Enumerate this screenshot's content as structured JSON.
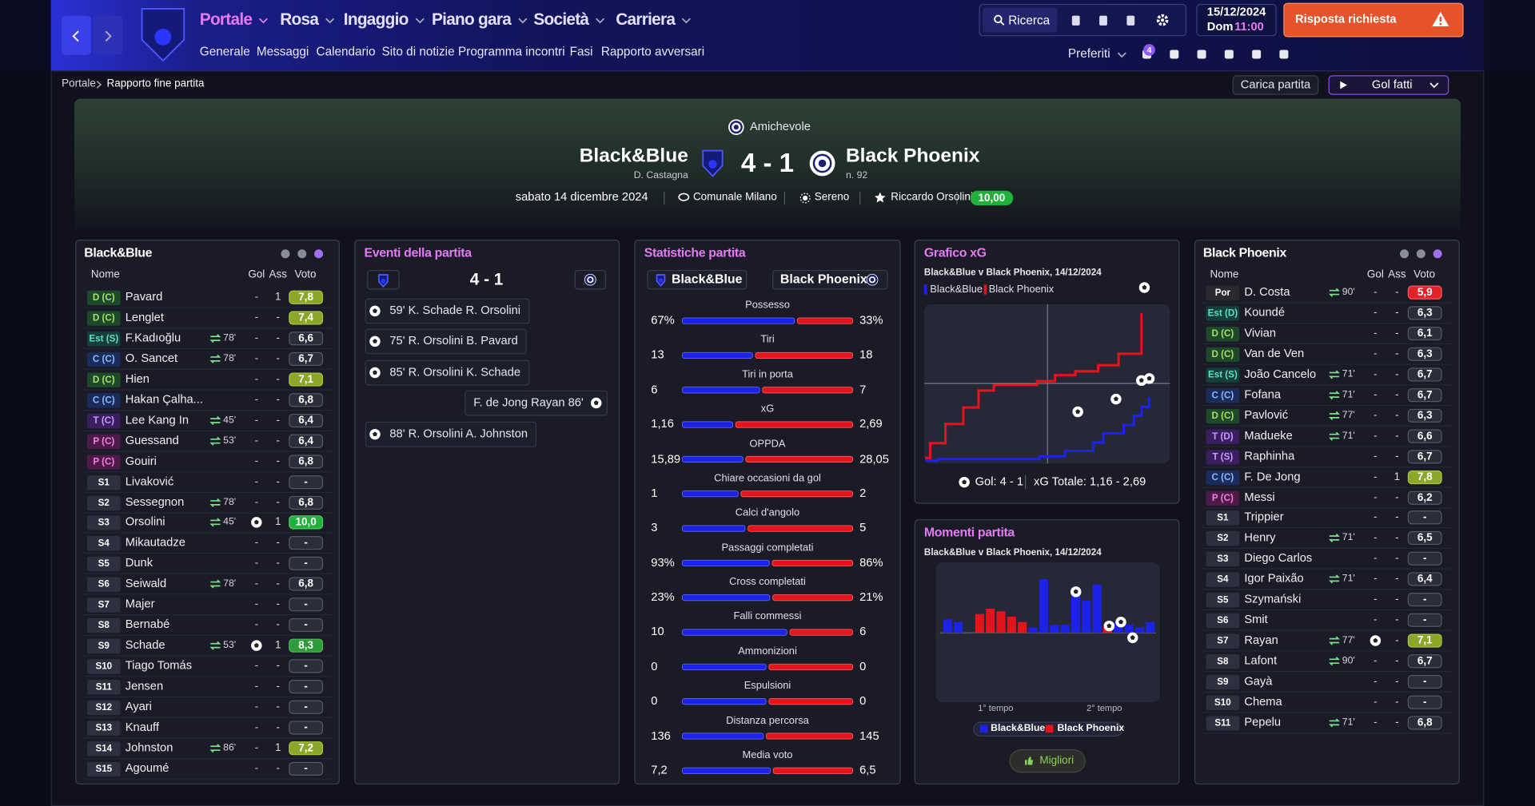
{
  "nav": {
    "menu": [
      "Portale",
      "Rosa",
      "Ingaggio",
      "Piano gara",
      "Società",
      "Carriera"
    ],
    "submenu": [
      "Generale",
      "Messaggi",
      "Calendario",
      "Sito di notizie",
      "Programma incontri",
      "Fasi",
      "Rapporto avversari"
    ],
    "search": "Ricerca",
    "date": "15/12/2024",
    "day": "Dom",
    "time": "11:00",
    "alert": "Risposta richiesta",
    "favorites": "Preferiti",
    "notifications": "4"
  },
  "breadcrumb": [
    "Portale",
    "Rapporto fine partita"
  ],
  "actions": {
    "load": "Carica partita",
    "goals": "Gol fatti"
  },
  "match": {
    "competition": "Amichevole",
    "home": "Black&Blue",
    "home_manager": "D. Castagna",
    "score": "4 - 1",
    "away": "Black Phoenix",
    "away_info": "n. 92",
    "date": "sabato 14 dicembre 2024",
    "stadium": "Comunale Milano",
    "weather": "Sereno",
    "player_of_match": "Riccardo Orsolini",
    "player_of_match_rating": "10,00"
  },
  "home_team": {
    "title": "Black&Blue",
    "columns": [
      "Nome",
      "Gol",
      "Ass",
      "Voto"
    ],
    "players": [
      [
        "D (C)",
        "Pavard",
        null,
        "-",
        "1",
        "7,8"
      ],
      [
        "D (C)",
        "Lenglet",
        null,
        "-",
        "-",
        "7,4"
      ],
      [
        "Est (S)",
        "F.Kadıoğlu",
        "78'",
        "-",
        "-",
        "6,6"
      ],
      [
        "C (C)",
        "O. Sancet",
        "78'",
        "-",
        "-",
        "6,7"
      ],
      [
        "D (C)",
        "Hien",
        null,
        "-",
        "-",
        "7,1"
      ],
      [
        "C (C)",
        "Hakan Çalha...",
        null,
        "-",
        "-",
        "6,8"
      ],
      [
        "T (C)",
        "Lee Kang In",
        "45'",
        "-",
        "-",
        "6,4"
      ],
      [
        "P (C)",
        "Guessand",
        "53'",
        "-",
        "-",
        "6,4"
      ],
      [
        "P (C)",
        "Gouiri",
        null,
        "-",
        "-",
        "6,8"
      ],
      [
        "S1",
        "Livaković",
        null,
        "-",
        "-",
        "-"
      ],
      [
        "S2",
        "Sessegnon",
        "78'",
        "-",
        "-",
        "6,8"
      ],
      [
        "S3",
        "Orsolini",
        "45'",
        null,
        "1",
        "10,0"
      ],
      [
        "S4",
        "Mikautadze",
        null,
        "-",
        "-",
        "-"
      ],
      [
        "S5",
        "Dunk",
        null,
        "-",
        "-",
        "-"
      ],
      [
        "S6",
        "Seiwald",
        "78'",
        "-",
        "-",
        "6,8"
      ],
      [
        "S7",
        "Majer",
        null,
        "-",
        "-",
        "-"
      ],
      [
        "S8",
        "Bernabé",
        null,
        "-",
        "-",
        "-"
      ],
      [
        "S9",
        "Schade",
        "53'",
        null,
        "1",
        "8,3"
      ],
      [
        "S10",
        "Tiago Tomás",
        null,
        "-",
        "-",
        "-"
      ],
      [
        "S11",
        "Jensen",
        null,
        "-",
        "-",
        "-"
      ],
      [
        "S12",
        "Ayari",
        null,
        "-",
        "-",
        "-"
      ],
      [
        "S13",
        "Knauff",
        null,
        "-",
        "-",
        "-"
      ],
      [
        "S14",
        "Johnston",
        "86'",
        "-",
        "1",
        "7,2"
      ],
      [
        "S15",
        "Agoumé",
        null,
        "-",
        "-",
        "-"
      ]
    ]
  },
  "away_team": {
    "title": "Black Phoenix",
    "columns": [
      "Nome",
      "Gol",
      "Ass",
      "Voto"
    ],
    "players": [
      [
        "Por",
        "D. Costa",
        "90'",
        "-",
        "-",
        "5,9"
      ],
      [
        "Est (D)",
        "Koundé",
        null,
        "-",
        "-",
        "6,3"
      ],
      [
        "D (C)",
        "Vivian",
        null,
        "-",
        "-",
        "6,1"
      ],
      [
        "D (C)",
        "Van de Ven",
        null,
        "-",
        "-",
        "6,3"
      ],
      [
        "Est (S)",
        "João Cancelo",
        "71'",
        "-",
        "-",
        "6,7"
      ],
      [
        "C (C)",
        "Fofana",
        "71'",
        "-",
        "-",
        "6,7"
      ],
      [
        "D (C)",
        "Pavlović",
        "77'",
        "-",
        "-",
        "6,3"
      ],
      [
        "T (D)",
        "Madueke",
        "71'",
        "-",
        "-",
        "6,6"
      ],
      [
        "T (S)",
        "Raphinha",
        null,
        "-",
        "-",
        "6,7"
      ],
      [
        "C (C)",
        "F. De Jong",
        null,
        "-",
        "1",
        "7,8"
      ],
      [
        "P (C)",
        "Messi",
        null,
        "-",
        "-",
        "6,2"
      ],
      [
        "S1",
        "Trippier",
        null,
        "-",
        "-",
        "-"
      ],
      [
        "S2",
        "Henry",
        "71'",
        "-",
        "-",
        "6,5"
      ],
      [
        "S3",
        "Diego Carlos",
        null,
        "-",
        "-",
        "-"
      ],
      [
        "S4",
        "Igor Paixão",
        "71'",
        "-",
        "-",
        "6,4"
      ],
      [
        "S5",
        "Szymański",
        null,
        "-",
        "-",
        "-"
      ],
      [
        "S6",
        "Smit",
        null,
        "-",
        "-",
        "-"
      ],
      [
        "S7",
        "Rayan",
        "77'",
        null,
        "-",
        "7,1"
      ],
      [
        "S8",
        "Lafont",
        "90'",
        "-",
        "-",
        "6,7"
      ],
      [
        "S9",
        "Gayà",
        null,
        "-",
        "-",
        "-"
      ],
      [
        "S10",
        "Chema",
        null,
        "-",
        "-",
        "-"
      ],
      [
        "S11",
        "Pepelu",
        "71'",
        "-",
        "-",
        "6,8"
      ]
    ]
  },
  "events": {
    "title": "Eventi della partita",
    "score": "4 - 1",
    "items": [
      {
        "text": "59' K. Schade R. Orsolini",
        "side": "home"
      },
      {
        "text": "75' R. Orsolini B. Pavard",
        "side": "home"
      },
      {
        "text": "85' R. Orsolini K. Schade",
        "side": "home"
      },
      {
        "text": "F. de Jong Rayan 86'",
        "side": "away"
      },
      {
        "text": "88' R. Orsolini A. Johnston",
        "side": "home"
      }
    ]
  },
  "stats": {
    "title": "Statistiche partita",
    "teams": [
      "Black&Blue",
      "Black Phoenix"
    ],
    "colors": [
      "#1c22e8",
      "#e3141b"
    ],
    "rows": [
      {
        "label": "Possesso",
        "values": [
          67,
          33
        ],
        "value_labels": [
          "67%",
          "33%"
        ]
      },
      {
        "label": "Tiri",
        "values": [
          13,
          18
        ]
      },
      {
        "label": "Tiri in porta",
        "values": [
          6,
          7
        ]
      },
      {
        "label": "xG",
        "values": [
          1.16,
          2.69
        ],
        "value_labels": [
          "1,16",
          "2,69"
        ]
      },
      {
        "label": "OPPDA",
        "values": [
          15.89,
          28.05
        ],
        "value_labels": [
          "15,89",
          "28,05"
        ]
      },
      {
        "label": "Chiare occasioni da gol",
        "values": [
          1,
          2
        ]
      },
      {
        "label": "Calci d'angolo",
        "values": [
          3,
          5
        ]
      },
      {
        "label": "Passaggi completati",
        "values": [
          93,
          86
        ],
        "value_labels": [
          "93%",
          "86%"
        ]
      },
      {
        "label": "Cross completati",
        "values": [
          23,
          21
        ],
        "value_labels": [
          "23%",
          "21%"
        ]
      },
      {
        "label": "Falli commessi",
        "values": [
          10,
          6
        ]
      },
      {
        "label": "Ammonizioni",
        "values": [
          0,
          0
        ]
      },
      {
        "label": "Espulsioni",
        "values": [
          0,
          0
        ]
      },
      {
        "label": "Distanza percorsa",
        "values": [
          136,
          145
        ]
      },
      {
        "label": "Media voto",
        "values": [
          7.2,
          6.5
        ],
        "value_labels": [
          "7,2",
          "6,5"
        ]
      }
    ]
  },
  "xg_chart": {
    "type": "line",
    "title": "Grafico xG",
    "subtitle": "Black&Blue v Black Phoenix, 14/12/2024",
    "xlim": [
      0,
      95
    ],
    "ylim": [
      0,
      2.8
    ],
    "series": [
      {
        "name": "Black&Blue",
        "color": "#1c22e8",
        "x": [
          0,
          5,
          5,
          45,
          45,
          55,
          55,
          66,
          66,
          70,
          70,
          78,
          78,
          82,
          82,
          85,
          85,
          88,
          88
        ],
        "values": [
          0,
          0,
          0.03,
          0.03,
          0.08,
          0.08,
          0.18,
          0.18,
          0.33,
          0.33,
          0.5,
          0.5,
          0.65,
          0.65,
          0.82,
          0.82,
          0.98,
          0.98,
          1.16
        ]
      },
      {
        "name": "Black Phoenix",
        "color": "#e3141b",
        "x": [
          0,
          2,
          2,
          8,
          8,
          15,
          15,
          21,
          21,
          27,
          27,
          44,
          44,
          51,
          51,
          59,
          59,
          68,
          68,
          76,
          76,
          85,
          85
        ],
        "values": [
          0.05,
          0.05,
          0.32,
          0.32,
          0.67,
          0.67,
          0.97,
          0.97,
          1.28,
          1.28,
          1.38,
          1.38,
          1.45,
          1.45,
          1.56,
          1.56,
          1.63,
          1.63,
          1.74,
          1.74,
          1.95,
          1.95,
          2.69
        ]
      }
    ],
    "footer": [
      "Gol: 4 - 1",
      "xG Totale: 1,16 - 2,69"
    ]
  },
  "momentum_chart": {
    "type": "bar",
    "title": "Momenti partita",
    "subtitle": "Black&Blue v Black Phoenix, 14/12/2024",
    "ylim": [
      -1,
      1
    ],
    "values": [
      0.25,
      0.2,
      0,
      -0.35,
      -0.45,
      -0.4,
      -0.3,
      -0.2,
      0.1,
      1.0,
      0.15,
      0.15,
      0.7,
      0.6,
      0.9,
      -0.1,
      0.2,
      0.15,
      0.1,
      0.2
    ],
    "x_labels": [
      "1° tempo",
      "2° tempo"
    ],
    "series_names": [
      "Black&Blue",
      "Black Phoenix"
    ],
    "colors": [
      "#1c22e8",
      "#e3141b"
    ],
    "button": "Migliori"
  }
}
